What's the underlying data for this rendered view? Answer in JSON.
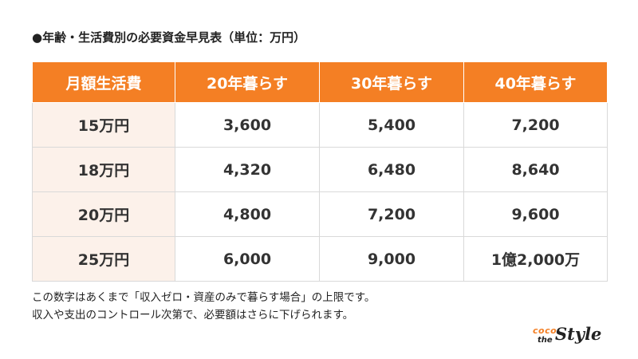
{
  "title": "●年齢・生活費別の必要資金早見表（単位：万円）",
  "table": {
    "headers": [
      "月額生活費",
      "20年暮らす",
      "30年暮らす",
      "40年暮らす"
    ],
    "rows": [
      [
        "15万円",
        "3,600",
        "5,400",
        "7,200"
      ],
      [
        "18万円",
        "4,320",
        "6,480",
        "8,640"
      ],
      [
        "20万円",
        "4,800",
        "7,200",
        "9,600"
      ],
      [
        "25万円",
        "6,000",
        "9,000",
        "1億2,000万"
      ]
    ]
  },
  "notes": [
    "この数字はあくまで「収入ゼロ・資産のみで暮らす場合」の上限です。",
    "収入や支出のコントロール次第で、必要額はさらに下げられます。"
  ],
  "logo": {
    "coco": "coco",
    "the": "the",
    "style": "Style"
  },
  "colors": {
    "header_bg": "#F47F24",
    "rowhead_bg": "#FCF1EA"
  }
}
